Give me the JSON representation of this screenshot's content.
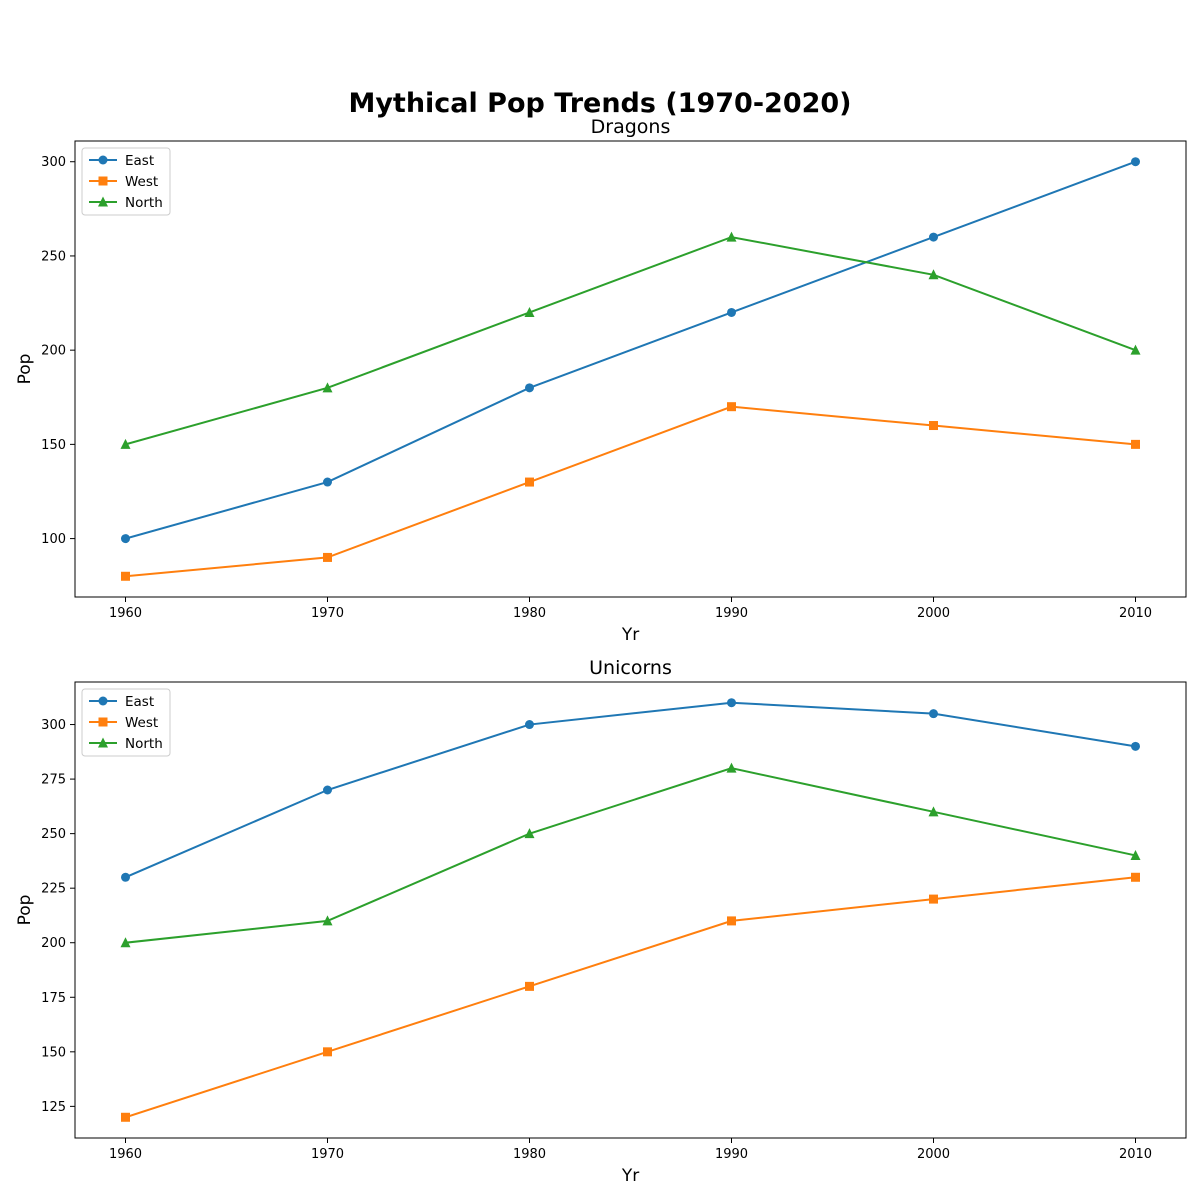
{
  "figure": {
    "title": "Mythical Pop Trends (1970-2020)"
  },
  "colors": {
    "East": "#1f77b4",
    "West": "#ff7f0e",
    "North": "#2ca02c"
  },
  "chart_data": [
    {
      "type": "line",
      "title": "Dragons",
      "xlabel": "Yr",
      "ylabel": "Pop",
      "x": [
        1960,
        1970,
        1980,
        1990,
        2000,
        2010
      ],
      "xticks": [
        1960,
        1970,
        1980,
        1990,
        2000,
        2010
      ],
      "xlim": [
        1957.5,
        2012.5
      ],
      "ylim": [
        69,
        311
      ],
      "yticks": [
        100,
        150,
        200,
        250,
        300
      ],
      "legend": "top-left",
      "grid": false,
      "series": [
        {
          "name": "East",
          "marker": "circle",
          "color": "#1f77b4",
          "values": [
            100,
            130,
            180,
            220,
            260,
            300
          ]
        },
        {
          "name": "West",
          "marker": "square",
          "color": "#ff7f0e",
          "values": [
            80,
            90,
            130,
            170,
            160,
            150
          ]
        },
        {
          "name": "North",
          "marker": "triangle",
          "color": "#2ca02c",
          "values": [
            150,
            180,
            220,
            260,
            240,
            200
          ]
        }
      ]
    },
    {
      "type": "line",
      "title": "Unicorns",
      "xlabel": "Yr",
      "ylabel": "Pop",
      "x": [
        1960,
        1970,
        1980,
        1990,
        2000,
        2010
      ],
      "xticks": [
        1960,
        1970,
        1980,
        1990,
        2000,
        2010
      ],
      "xlim": [
        1957.5,
        2012.5
      ],
      "ylim": [
        110.5,
        319.5
      ],
      "yticks": [
        125,
        150,
        175,
        200,
        225,
        250,
        275,
        300
      ],
      "legend": "top-left",
      "grid": false,
      "series": [
        {
          "name": "East",
          "marker": "circle",
          "color": "#1f77b4",
          "values": [
            230,
            270,
            300,
            310,
            305,
            290
          ]
        },
        {
          "name": "West",
          "marker": "square",
          "color": "#ff7f0e",
          "values": [
            120,
            150,
            180,
            210,
            220,
            230
          ]
        },
        {
          "name": "North",
          "marker": "triangle",
          "color": "#2ca02c",
          "values": [
            200,
            210,
            250,
            280,
            260,
            240
          ]
        }
      ]
    }
  ]
}
